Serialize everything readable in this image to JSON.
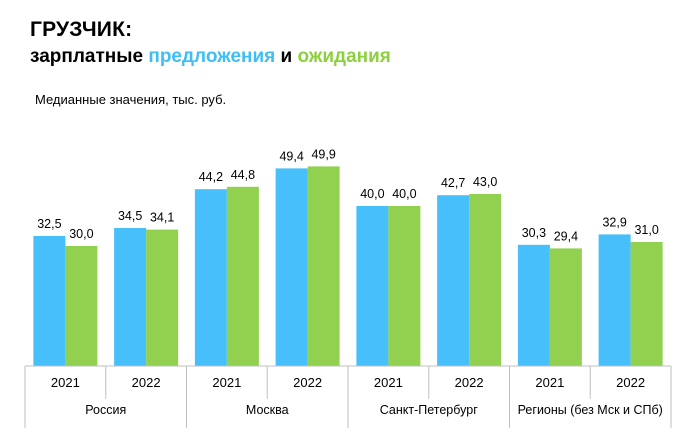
{
  "header": {
    "title": "ГРУЗЧИК:",
    "subtitle_part1": "зарплатные ",
    "subtitle_offers": "предложения",
    "subtitle_and": " и ",
    "subtitle_expectations": "ожидания",
    "units_note": "Медианные значения, тыс. руб."
  },
  "colors": {
    "offers": "#47bffa",
    "expectations": "#92d050",
    "axis": "#bfbfbf"
  },
  "chart_data": {
    "type": "bar",
    "groups": [
      "Россия",
      "Москва",
      "Санкт-Петербург",
      "Регионы (без Мск и СПб)"
    ],
    "categories": [
      "2021",
      "2022",
      "2021",
      "2022",
      "2021",
      "2022",
      "2021",
      "2022"
    ],
    "series": [
      {
        "values": [
          32.5,
          34.5,
          44.2,
          49.4,
          40.0,
          42.7,
          30.3,
          32.9
        ]
      },
      {
        "values": [
          30.0,
          34.1,
          44.8,
          49.9,
          40.0,
          43.0,
          29.4,
          31.0
        ]
      }
    ],
    "data_labels": [
      [
        "32,5",
        "34,5",
        "44,2",
        "49,4",
        "40,0",
        "42,7",
        "30,3",
        "32,9"
      ],
      [
        "30,0",
        "34,1",
        "44,8",
        "49,9",
        "40,0",
        "43,0",
        "29,4",
        "31,0"
      ]
    ],
    "ylim": [
      0,
      55
    ],
    "grid": false,
    "legend": "none"
  }
}
